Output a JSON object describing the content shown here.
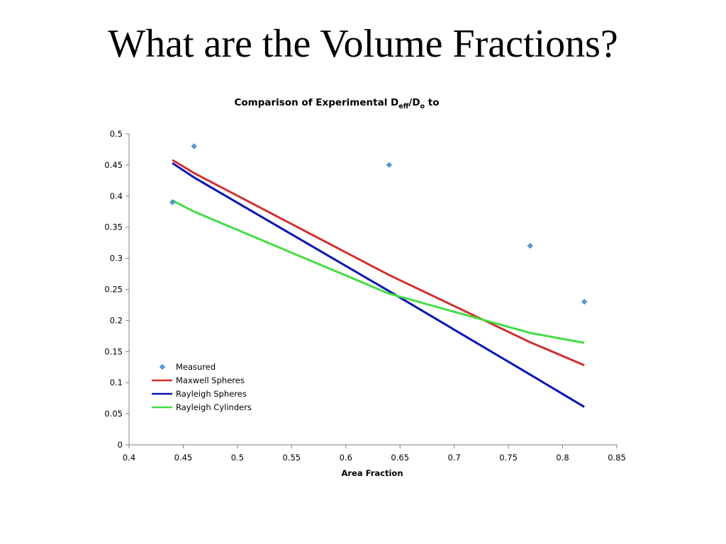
{
  "slide": {
    "title": "What are the Volume Fractions?"
  },
  "chart_data": {
    "type": "scatter",
    "title": {
      "prefix": "Comparison of Experimental D",
      "sub1": "eff",
      "middle": "/D",
      "sub2": "o",
      "suffix": " to"
    },
    "xlabel": "Area Fraction",
    "ylabel": "",
    "xlim": [
      0.4,
      0.85
    ],
    "ylim": [
      0,
      0.5
    ],
    "xticks": [
      "0.4",
      "0.45",
      "0.5",
      "0.55",
      "0.6",
      "0.65",
      "0.7",
      "0.75",
      "0.8",
      "0.85"
    ],
    "yticks": [
      "0",
      "0.05",
      "0.1",
      "0.15",
      "0.2",
      "0.25",
      "0.3",
      "0.35",
      "0.4",
      "0.45",
      "0.5"
    ],
    "grid": false,
    "legend_position": "bottom-left",
    "series": [
      {
        "name": "Measured",
        "kind": "markers",
        "color": "#5b9bd5",
        "x": [
          0.44,
          0.46,
          0.64,
          0.77,
          0.82
        ],
        "y": [
          0.39,
          0.48,
          0.45,
          0.32,
          0.23
        ]
      },
      {
        "name": "Maxwell Spheres",
        "kind": "line",
        "color": "#d03030",
        "x": [
          0.44,
          0.46,
          0.64,
          0.77,
          0.82
        ],
        "y": [
          0.458,
          0.437,
          0.273,
          0.165,
          0.128
        ]
      },
      {
        "name": "Rayleigh Spheres",
        "kind": "line",
        "color": "#0a14b4",
        "x": [
          0.44,
          0.46,
          0.64,
          0.77,
          0.82
        ],
        "y": [
          0.453,
          0.43,
          0.247,
          0.113,
          0.061
        ]
      },
      {
        "name": "Rayleigh Cylinders",
        "kind": "line",
        "color": "#44dd44",
        "x": [
          0.44,
          0.46,
          0.64,
          0.77,
          0.82
        ],
        "y": [
          0.393,
          0.375,
          0.243,
          0.18,
          0.164
        ]
      }
    ]
  }
}
